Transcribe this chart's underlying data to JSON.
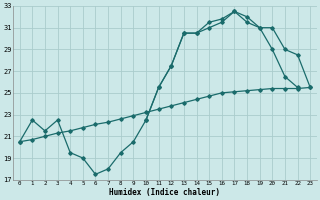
{
  "xlabel": "Humidex (Indice chaleur)",
  "bg_color": "#cce8e8",
  "grid_color": "#aacccc",
  "line_color": "#1a6b6b",
  "xlim": [
    -0.5,
    23.5
  ],
  "ylim": [
    17,
    33
  ],
  "xticks": [
    0,
    1,
    2,
    3,
    4,
    5,
    6,
    7,
    8,
    9,
    10,
    11,
    12,
    13,
    14,
    15,
    16,
    17,
    18,
    19,
    20,
    21,
    22,
    23
  ],
  "yticks": [
    17,
    19,
    21,
    23,
    25,
    27,
    29,
    31,
    33
  ],
  "line1_x": [
    0,
    1,
    2,
    3,
    4,
    5,
    6,
    7,
    8,
    9,
    10,
    11,
    12,
    13,
    14,
    15,
    16,
    17,
    18,
    19,
    20,
    21,
    22,
    23
  ],
  "line1_y": [
    20.5,
    20.7,
    21.0,
    21.3,
    21.5,
    21.8,
    22.1,
    22.3,
    22.6,
    22.9,
    23.2,
    23.5,
    23.8,
    24.1,
    24.4,
    24.7,
    25.0,
    25.1,
    25.2,
    25.3,
    25.4,
    25.4,
    25.4,
    25.5
  ],
  "line2_x": [
    0,
    1,
    2,
    3,
    4,
    5,
    6,
    7,
    8,
    9,
    10,
    11,
    12,
    13,
    14,
    15,
    16,
    17,
    18,
    19,
    20,
    21,
    22
  ],
  "line2_y": [
    20.5,
    22.5,
    21.5,
    22.5,
    19.5,
    19.0,
    17.5,
    18.0,
    19.5,
    20.5,
    22.5,
    25.5,
    27.5,
    30.5,
    30.5,
    31.0,
    31.5,
    32.5,
    32.0,
    31.0,
    29.0,
    26.5,
    25.5
  ],
  "line3_x": [
    10,
    11,
    12,
    13,
    14,
    15,
    16,
    17,
    18,
    19,
    20,
    21,
    22,
    23
  ],
  "line3_y": [
    22.5,
    25.5,
    27.5,
    30.5,
    30.5,
    31.5,
    31.8,
    32.5,
    31.5,
    31.0,
    31.0,
    29.0,
    28.5,
    25.5
  ]
}
